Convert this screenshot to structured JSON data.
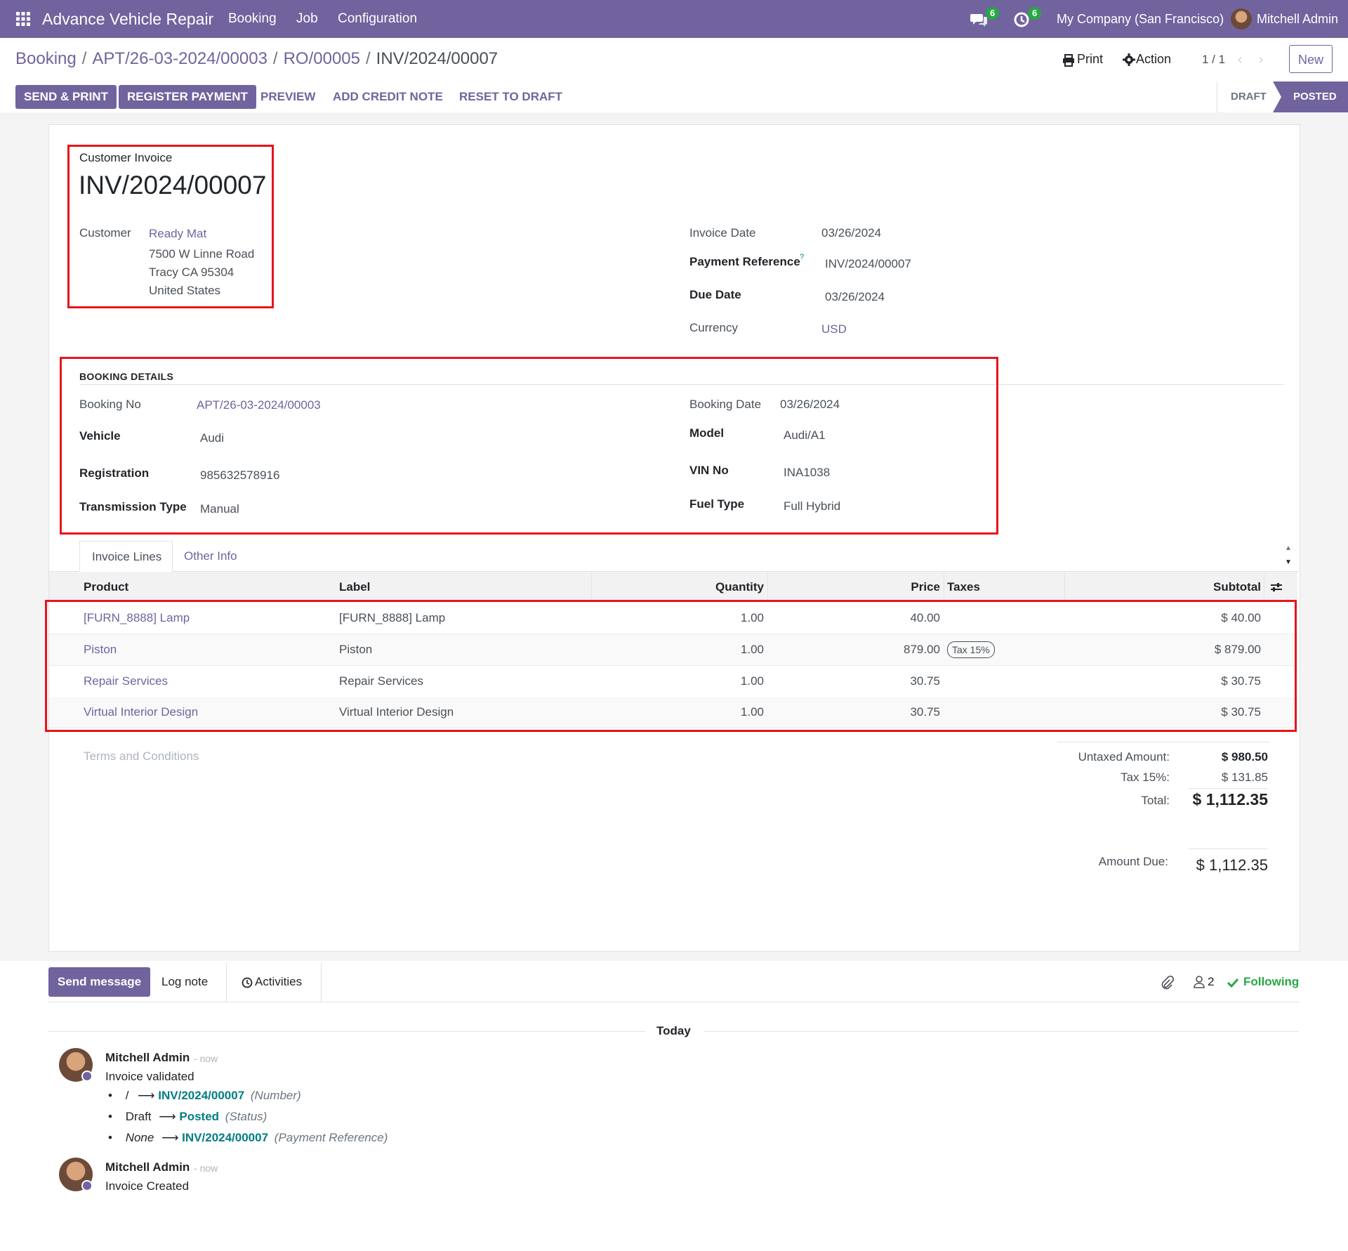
{
  "navbar": {
    "app_name": "Advance Vehicle Repair",
    "menu": [
      "Booking",
      "Job",
      "Configuration"
    ],
    "messages_count": "6",
    "activities_count": "6",
    "company": "My Company (San Francisco)",
    "user": "Mitchell Admin"
  },
  "breadcrumb": [
    "Booking",
    "APT/26-03-2024/00003",
    "RO/00005",
    "INV/2024/00007"
  ],
  "control": {
    "print": "Print",
    "action": "Action",
    "pager": "1 / 1",
    "new": "New"
  },
  "buttons": {
    "send_print": "SEND & PRINT",
    "register_payment": "REGISTER PAYMENT",
    "preview": "PREVIEW",
    "add_credit_note": "ADD CREDIT NOTE",
    "reset_to_draft": "RESET TO DRAFT"
  },
  "status": {
    "draft": "DRAFT",
    "posted": "POSTED"
  },
  "invoice": {
    "type_label": "Customer Invoice",
    "number": "INV/2024/00007",
    "customer_label": "Customer",
    "customer_name": "Ready Mat",
    "address": [
      "7500 W Linne Road",
      "Tracy CA 95304",
      "United States"
    ],
    "invoice_date_label": "Invoice Date",
    "invoice_date": "03/26/2024",
    "payment_reference_label": "Payment Reference",
    "payment_reference_help": "?",
    "payment_reference": "INV/2024/00007",
    "due_date_label": "Due Date",
    "due_date": "03/26/2024",
    "currency_label": "Currency",
    "currency": "USD"
  },
  "booking": {
    "section_title": "BOOKING DETAILS",
    "booking_no_label": "Booking No",
    "booking_no": "APT/26-03-2024/00003",
    "booking_date_label": "Booking Date",
    "booking_date": "03/26/2024",
    "vehicle_label": "Vehicle",
    "vehicle": "Audi",
    "model_label": "Model",
    "model": "Audi/A1",
    "registration_label": "Registration",
    "registration": "985632578916",
    "vin_label": "VIN No",
    "vin": "INA1038",
    "transmission_label": "Transmission Type",
    "transmission": "Manual",
    "fuel_label": "Fuel Type",
    "fuel": "Full Hybrid"
  },
  "tabs": [
    "Invoice Lines",
    "Other Info"
  ],
  "lines": {
    "headers": [
      "Product",
      "Label",
      "Quantity",
      "Price",
      "Taxes",
      "Subtotal"
    ],
    "rows": [
      {
        "product": "[FURN_8888] Lamp",
        "label": "[FURN_8888] Lamp",
        "quantity": "1.00",
        "price": "40.00",
        "tax": "",
        "subtotal": "$ 40.00"
      },
      {
        "product": "Piston",
        "label": "Piston",
        "quantity": "1.00",
        "price": "879.00",
        "tax": "Tax 15%",
        "subtotal": "$ 879.00"
      },
      {
        "product": "Repair Services",
        "label": "Repair Services",
        "quantity": "1.00",
        "price": "30.75",
        "tax": "",
        "subtotal": "$ 30.75"
      },
      {
        "product": "Virtual Interior Design",
        "label": "Virtual Interior Design",
        "quantity": "1.00",
        "price": "30.75",
        "tax": "",
        "subtotal": "$ 30.75"
      }
    ]
  },
  "terms_placeholder": "Terms and Conditions",
  "totals": {
    "untaxed_label": "Untaxed Amount:",
    "untaxed": "$ 980.50",
    "tax_label": "Tax 15%:",
    "tax": "$ 131.85",
    "total_label": "Total:",
    "total": "$ 1,112.35",
    "due_label": "Amount Due:",
    "due": "$ 1,112.35"
  },
  "chatter": {
    "send_message": "Send message",
    "log_note": "Log note",
    "activities": "Activities",
    "followers_count": "2",
    "following": "Following",
    "today": "Today",
    "messages": [
      {
        "author": "Mitchell Admin",
        "time": "now",
        "body": "Invoice validated",
        "changes": [
          {
            "old": "/",
            "new": "INV/2024/00007",
            "field": "(Number)"
          },
          {
            "old": "Draft",
            "new": "Posted",
            "field": "(Status)"
          },
          {
            "old": "None",
            "new": "INV/2024/00007",
            "field": "(Payment Reference)"
          }
        ]
      },
      {
        "author": "Mitchell Admin",
        "time": "now",
        "body": "Invoice Created"
      }
    ]
  }
}
